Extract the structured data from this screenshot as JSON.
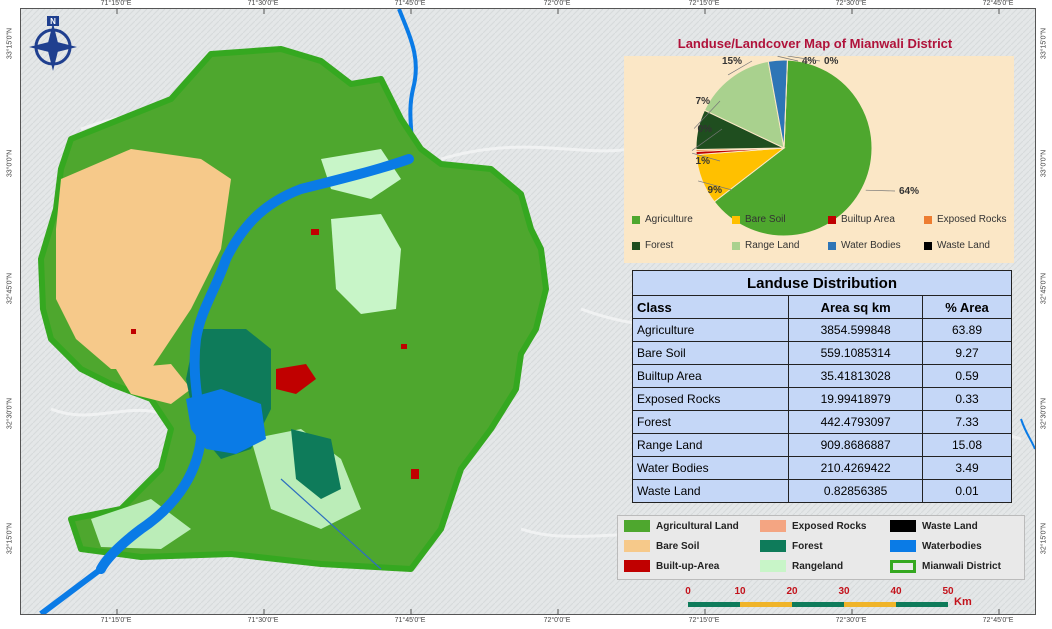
{
  "map": {
    "longitude_labels": [
      "71°15'0\"E",
      "71°30'0\"E",
      "71°45'0\"E",
      "72°0'0\"E",
      "72°15'0\"E",
      "72°30'0\"E",
      "72°45'0\"E"
    ],
    "latitude_labels": [
      "33°15'0\"N",
      "33°0'0\"N",
      "32°45'0\"N",
      "32°30'0\"N",
      "32°15'0\"N"
    ],
    "north_arrow_letter": "N",
    "colors": {
      "agricultural": "#4ea72e",
      "bare_soil": "#f6c98a",
      "built_up": "#c00000",
      "exposed_rocks": "#f4a582",
      "forest": "#0e7b5a",
      "rangeland": "#c8f5c8",
      "waste_land": "#000000",
      "water": "#0a7be6",
      "district_border": "#35a820",
      "basemap": "#e6e9ea"
    }
  },
  "pie": {
    "title": "Landuse/Landcover Map of Mianwali District",
    "slice_labels": [
      "64%",
      "9%",
      "1%",
      "0%",
      "7%",
      "15%",
      "4%",
      "0%"
    ],
    "legend": [
      {
        "label": "Agriculture",
        "color": "#4ea72e"
      },
      {
        "label": "Bare Soil",
        "color": "#ffc000"
      },
      {
        "label": "Builtup Area",
        "color": "#c00000"
      },
      {
        "label": "Exposed Rocks",
        "color": "#ed7d31"
      },
      {
        "label": "Forest",
        "color": "#1f4e1f"
      },
      {
        "label": "Range Land",
        "color": "#a9d18e"
      },
      {
        "label": "Water Bodies",
        "color": "#2e75b6"
      },
      {
        "label": "Waste Land",
        "color": "#000000"
      }
    ]
  },
  "chart_data": {
    "type": "pie",
    "title": "Landuse/Landcover Map of Mianwali District",
    "categories": [
      "Agriculture",
      "Bare Soil",
      "Builtup Area",
      "Exposed Rocks",
      "Forest",
      "Range Land",
      "Water Bodies",
      "Waste Land"
    ],
    "values": [
      63.89,
      9.27,
      0.59,
      0.33,
      7.33,
      15.08,
      3.49,
      0.01
    ],
    "legend_position": "bottom"
  },
  "table": {
    "caption": "Landuse Distribution",
    "headers": [
      "Class",
      "Area sq km",
      "% Area"
    ],
    "rows": [
      {
        "class": "Agriculture",
        "area": "3854.599848",
        "pct": "63.89"
      },
      {
        "class": "Bare Soil",
        "area": "559.1085314",
        "pct": "9.27"
      },
      {
        "class": "Builtup Area",
        "area": "35.41813028",
        "pct": "0.59"
      },
      {
        "class": "Exposed Rocks",
        "area": "19.99418979",
        "pct": "0.33"
      },
      {
        "class": "Forest",
        "area": "442.4793097",
        "pct": "7.33"
      },
      {
        "class": "Range Land",
        "area": "909.8686887",
        "pct": "15.08"
      },
      {
        "class": "Water Bodies",
        "area": "210.4269422",
        "pct": "3.49"
      },
      {
        "class": "Waste Land",
        "area": "0.82856385",
        "pct": "0.01"
      }
    ]
  },
  "legend": {
    "items": [
      {
        "label": "Agricultural Land",
        "color": "#4ea72e"
      },
      {
        "label": "Exposed Rocks",
        "color": "#f4a582"
      },
      {
        "label": "Waste Land",
        "color": "#000000"
      },
      {
        "label": "Bare Soil",
        "color": "#f6c98a"
      },
      {
        "label": "Forest",
        "color": "#0e7b5a"
      },
      {
        "label": "Waterbodies",
        "color": "#0a7be6"
      },
      {
        "label": "Built-up-Area",
        "color": "#c00000"
      },
      {
        "label": "Rangeland",
        "color": "#c8f5c8"
      },
      {
        "label": "Mianwali District",
        "color": "#35a820"
      }
    ]
  },
  "scalebar": {
    "ticks": [
      "0",
      "10",
      "20",
      "30",
      "40",
      "50"
    ],
    "unit": "Km",
    "colors": [
      "#0e7b5a",
      "#f0b429"
    ]
  }
}
